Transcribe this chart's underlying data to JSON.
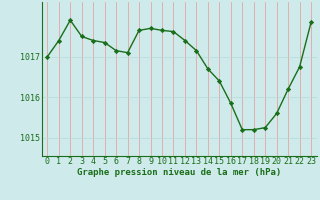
{
  "x": [
    0,
    1,
    2,
    3,
    4,
    5,
    6,
    7,
    8,
    9,
    10,
    11,
    12,
    13,
    14,
    15,
    16,
    17,
    18,
    19,
    20,
    21,
    22,
    23
  ],
  "y": [
    1017.0,
    1017.4,
    1017.9,
    1017.5,
    1017.4,
    1017.35,
    1017.15,
    1017.1,
    1017.65,
    1017.7,
    1017.65,
    1017.62,
    1017.4,
    1017.15,
    1016.7,
    1016.4,
    1015.85,
    1015.2,
    1015.2,
    1015.25,
    1015.6,
    1016.2,
    1016.75,
    1017.85
  ],
  "line_color": "#1a6e1a",
  "marker": "D",
  "marker_size": 2.2,
  "line_width": 1.0,
  "bg_color": "#ceeaea",
  "grid_color_v": "#e89898",
  "grid_color_h": "#b8d8d8",
  "ylabel_ticks": [
    1015,
    1016,
    1017
  ],
  "xlabel": "Graphe pression niveau de la mer (hPa)",
  "xlabel_color": "#1a6e1a",
  "xlabel_fontsize": 6.5,
  "tick_fontsize": 6,
  "ylim": [
    1014.55,
    1018.35
  ],
  "xlim": [
    -0.5,
    23.5
  ]
}
